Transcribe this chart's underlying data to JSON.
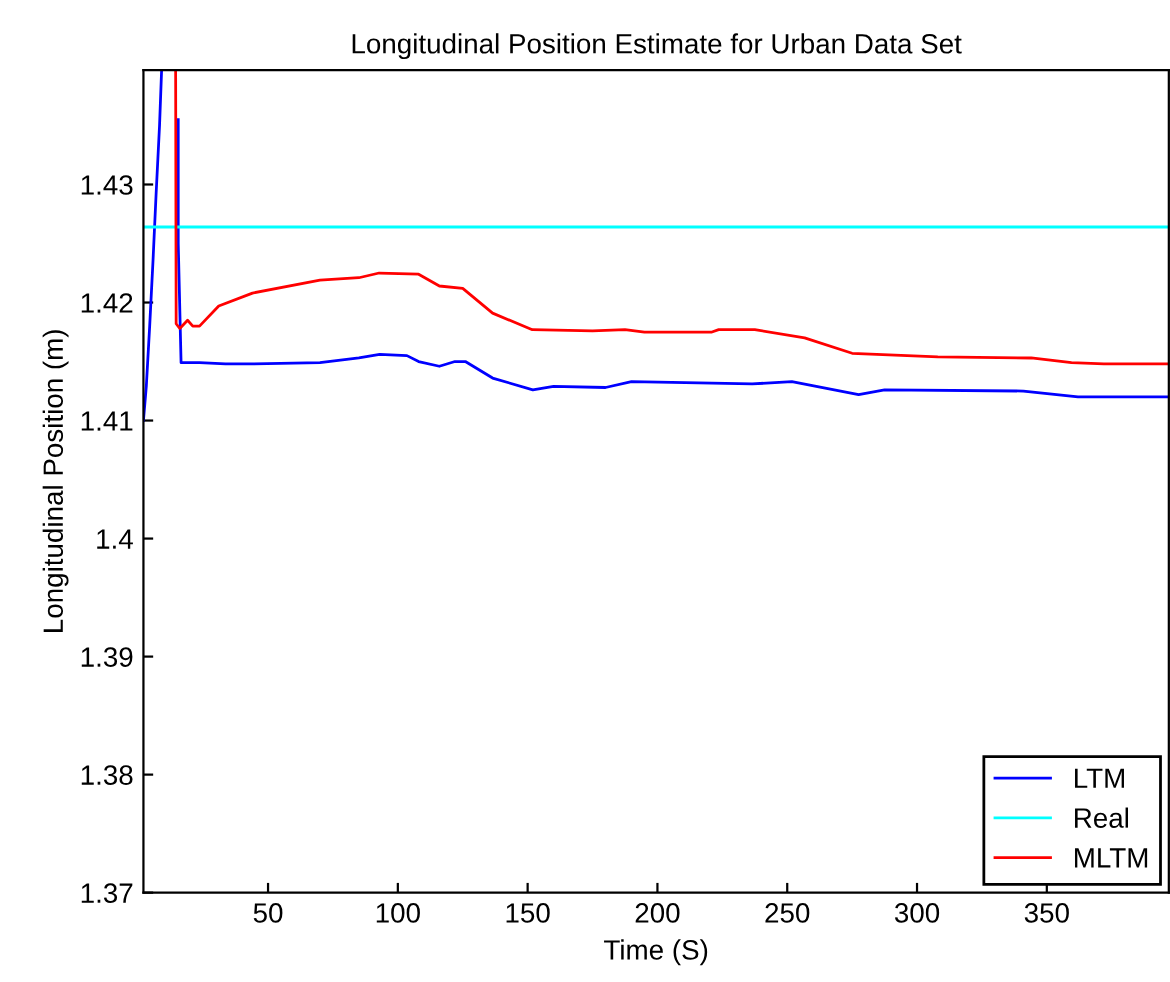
{
  "chart_data": {
    "type": "line",
    "title": "Longitudinal Position Estimate for Urban Data Set",
    "xlabel": "Time (S)",
    "ylabel": "Longitudinal Position (m)",
    "xlim": [
      2,
      397
    ],
    "ylim": [
      1.37,
      1.4397
    ],
    "xticks": [
      50,
      100,
      150,
      200,
      250,
      300,
      350
    ],
    "yticks": [
      1.37,
      1.38,
      1.39,
      1.4,
      1.41,
      1.42,
      1.43
    ],
    "grid": false,
    "legend": "bottom right",
    "line_style": "solid",
    "marker": "none",
    "series": [
      {
        "name": "LTM",
        "color": "#0000ff",
        "x": [
          2,
          3.1,
          4.4,
          5.7,
          6.9,
          8.2,
          9,
          12,
          15.4,
          15.4,
          16.5,
          23.6,
          33.6,
          44,
          70,
          85,
          93,
          103.5,
          108,
          116,
          122,
          126,
          136.5,
          152,
          160,
          180,
          190,
          236.5,
          251.8,
          277.5,
          287.5,
          341,
          362,
          396.7
        ],
        "values": [
          1.41,
          1.4129,
          1.418,
          1.4236,
          1.4293,
          1.435,
          1.4397,
          null,
          1.4355,
          1.425,
          1.4149,
          1.4149,
          1.4148,
          1.4148,
          1.4149,
          1.4153,
          1.4156,
          1.4155,
          1.415,
          1.4146,
          1.415,
          1.415,
          1.4136,
          1.4126,
          1.4129,
          1.4128,
          1.4133,
          1.4131,
          1.4133,
          1.4122,
          1.4126,
          1.4125,
          1.412,
          1.412
        ]
      },
      {
        "name": "Real",
        "color": "#00ffff",
        "x": [
          2,
          397
        ],
        "values": [
          1.4264,
          1.4264
        ]
      },
      {
        "name": "MLTM",
        "color": "#ff0000",
        "x": [
          14.4,
          14.6,
          16,
          19,
          21,
          23.6,
          31,
          44,
          70,
          85,
          92.8,
          108,
          116,
          125,
          136.5,
          151.8,
          175,
          187.5,
          195,
          221,
          223.6,
          237.5,
          256.7,
          275,
          308,
          344,
          359.5,
          372,
          396.7
        ],
        "values": [
          1.4397,
          1.4182,
          1.4178,
          1.4185,
          1.418,
          1.418,
          1.4197,
          1.4208,
          1.4219,
          1.4221,
          1.4225,
          1.4224,
          1.4214,
          1.4212,
          1.4191,
          1.4177,
          1.4176,
          1.4177,
          1.4175,
          1.4175,
          1.4177,
          1.4177,
          1.417,
          1.4157,
          1.4154,
          1.4153,
          1.4149,
          1.4148,
          1.4148
        ]
      }
    ]
  }
}
